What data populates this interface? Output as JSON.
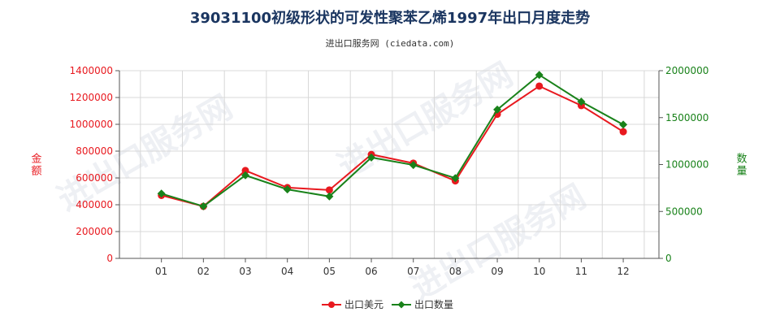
{
  "title": "39031100初级形状的可发性聚苯乙烯1997年出口月度走势",
  "subtitle": "进出口服务网 (ciedata.com)",
  "watermark": "进出口服务网",
  "colors": {
    "usd": "#e8191f",
    "qty": "#19821a",
    "grid": "#d8d8d8",
    "axis": "#555555"
  },
  "chart_data": {
    "type": "line",
    "categories": [
      "01",
      "02",
      "03",
      "04",
      "05",
      "06",
      "07",
      "08",
      "09",
      "10",
      "11",
      "12"
    ],
    "series": [
      {
        "name": "出口美元",
        "axis": "left",
        "values": [
          470000,
          388000,
          655000,
          528000,
          510000,
          775000,
          710000,
          578000,
          1075000,
          1285000,
          1140000,
          945000
        ]
      },
      {
        "name": "出口数量",
        "axis": "right",
        "values": [
          690000,
          555000,
          885000,
          735000,
          660000,
          1075000,
          995000,
          855000,
          1585000,
          1955000,
          1670000,
          1425000
        ]
      }
    ],
    "y_left": {
      "label": "金额",
      "ylim": [
        0,
        1400000
      ],
      "ticks": [
        "0",
        "200000",
        "400000",
        "600000",
        "800000",
        "1000000",
        "1200000",
        "1400000"
      ],
      "tick_values": [
        0,
        200000,
        400000,
        600000,
        800000,
        1000000,
        1200000,
        1400000
      ]
    },
    "y_right": {
      "label": "数量",
      "ylim": [
        0,
        2000000
      ],
      "ticks": [
        "0",
        "500000",
        "1000000",
        "1500000",
        "2000000"
      ],
      "tick_values": [
        0,
        500000,
        1000000,
        1500000,
        2000000
      ]
    },
    "grid": true,
    "legend": "bottom-center"
  }
}
